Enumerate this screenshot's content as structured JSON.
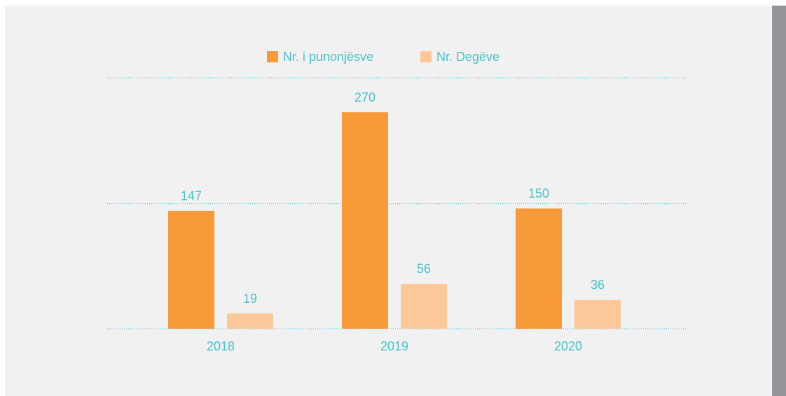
{
  "chart_data": {
    "type": "bar",
    "categories": [
      "2018",
      "2019",
      "2020"
    ],
    "series": [
      {
        "name": "Nr. i punonjësve",
        "color": "#f99a38",
        "values": [
          147,
          270,
          150
        ]
      },
      {
        "name": "Nr. Degëve",
        "color": "#fdc899",
        "values": [
          19,
          56,
          36
        ]
      }
    ],
    "ylim": [
      0,
      313
    ],
    "yticks": [
      0,
      156,
      313
    ],
    "grid": true
  }
}
